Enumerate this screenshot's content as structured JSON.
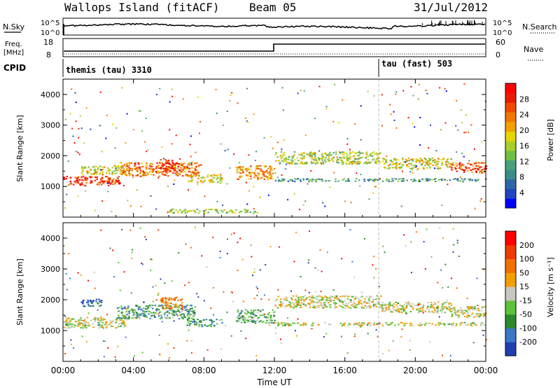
{
  "header": {
    "title": "Wallops Island (fitACF)",
    "beam": "Beam 05",
    "date": "31/Jul/2012"
  },
  "labels": {
    "nsky": "N.Sky",
    "nsearch": "N.Search",
    "freq_line1": "Freq.",
    "freq_line2": "[MHz]",
    "nave": "Nave",
    "cpid": "CPID",
    "exp_a": "themis (tau) 3310",
    "exp_b": "tau (fast) 503",
    "power_unit": "Power [dB]",
    "velocity_unit": "Velocity [m s⁻¹]",
    "y_axis": "Slant Range [km]",
    "x_axis": "Time UT"
  },
  "noise_axis": {
    "left_ticks": [
      "10^5",
      "10^0"
    ],
    "right_ticks": [
      "10^5",
      "10^0"
    ]
  },
  "freq_axis": {
    "left_ticks": [
      "18",
      "8"
    ],
    "right_ticks": [
      "60",
      "0"
    ]
  },
  "power_colorbar": {
    "ticks": [
      "28",
      "24",
      "20",
      "16",
      "12",
      "8",
      "4"
    ],
    "colors": [
      "#0000ff",
      "#1f45c0",
      "#2b67a8",
      "#3a8c8a",
      "#4aa27a",
      "#6fbf45",
      "#a8d02b",
      "#e6d400",
      "#f0a000",
      "#f27800",
      "#f04a00",
      "#e81d00",
      "#ff0000"
    ]
  },
  "velocity_colorbar": {
    "ticks": [
      "200",
      "100",
      "50",
      "15",
      "-15",
      "-50",
      "-100",
      "-200"
    ],
    "colors": [
      "#1f3fb0",
      "#3a78c8",
      "#2c8a2c",
      "#5cc23c",
      "#c8c8be",
      "#f2a000",
      "#f27000",
      "#ef3a00",
      "#ff0000"
    ]
  },
  "chart_data": [
    {
      "type": "heatmap",
      "name": "power",
      "xlabel": "Time UT",
      "ylabel": "Slant Range [km]",
      "xlim": [
        0,
        24
      ],
      "ylim": [
        0,
        4500
      ],
      "x_ticks": [
        "00:00",
        "04:00",
        "08:00",
        "12:00",
        "16:00",
        "20:00",
        "00:00"
      ],
      "y_ticks": [
        1000,
        2000,
        3000,
        4000
      ],
      "colorbar_label": "Power [dB]",
      "colorbar_ticks": [
        4,
        8,
        12,
        16,
        20,
        24,
        28
      ],
      "bands": [
        {
          "t0": 0.0,
          "t1": 3.2,
          "r0": 1050,
          "r1": 1350,
          "level": 0.85
        },
        {
          "t0": 1.0,
          "t1": 3.5,
          "r0": 1400,
          "r1": 1700,
          "level": 0.55
        },
        {
          "t0": 3.2,
          "t1": 7.8,
          "r0": 1350,
          "r1": 1800,
          "level": 0.75
        },
        {
          "t0": 5.5,
          "t1": 6.5,
          "r0": 1500,
          "r1": 1900,
          "level": 0.9
        },
        {
          "t0": 7.0,
          "t1": 9.0,
          "r0": 1150,
          "r1": 1400,
          "level": 0.6
        },
        {
          "t0": 9.8,
          "t1": 12.0,
          "r0": 1250,
          "r1": 1700,
          "level": 0.7
        },
        {
          "t0": 12.0,
          "t1": 18.0,
          "r0": 1750,
          "r1": 2150,
          "level": 0.5
        },
        {
          "t0": 12.0,
          "t1": 24.0,
          "r0": 1180,
          "r1": 1280,
          "level": 0.3
        },
        {
          "t0": 18.0,
          "t1": 22.0,
          "r0": 1600,
          "r1": 1950,
          "level": 0.55
        },
        {
          "t0": 22.0,
          "t1": 24.0,
          "r0": 1450,
          "r1": 1800,
          "level": 0.8
        },
        {
          "t0": 6.0,
          "t1": 11.0,
          "r0": 150,
          "r1": 280,
          "level": 0.5
        }
      ]
    },
    {
      "type": "heatmap",
      "name": "velocity",
      "xlabel": "Time UT",
      "ylabel": "Slant Range [km]",
      "xlim": [
        0,
        24
      ],
      "ylim": [
        0,
        4500
      ],
      "x_ticks": [
        "00:00",
        "04:00",
        "08:00",
        "12:00",
        "16:00",
        "20:00",
        "00:00"
      ],
      "y_ticks": [
        1000,
        2000,
        3000,
        4000
      ],
      "colorbar_label": "Velocity [m s-1]",
      "colorbar_ticks": [
        200,
        100,
        50,
        15,
        -15,
        -50,
        -100,
        -200
      ],
      "bands": [
        {
          "t0": 0.0,
          "t1": 3.5,
          "r0": 1100,
          "r1": 1450,
          "level": 0.5
        },
        {
          "t0": 1.0,
          "t1": 2.2,
          "r0": 1800,
          "r1": 2050,
          "level": 0.1
        },
        {
          "t0": 3.0,
          "t1": 7.5,
          "r0": 1400,
          "r1": 1850,
          "level": 0.3
        },
        {
          "t0": 5.5,
          "t1": 6.8,
          "r0": 1700,
          "r1": 2100,
          "level": 0.7
        },
        {
          "t0": 7.0,
          "t1": 9.0,
          "r0": 1150,
          "r1": 1400,
          "level": 0.3
        },
        {
          "t0": 9.8,
          "t1": 12.0,
          "r0": 1250,
          "r1": 1700,
          "level": 0.35
        },
        {
          "t0": 12.0,
          "t1": 18.0,
          "r0": 1750,
          "r1": 2150,
          "level": 0.5
        },
        {
          "t0": 12.0,
          "t1": 24.0,
          "r0": 1180,
          "r1": 1280,
          "level": 0.5
        },
        {
          "t0": 18.0,
          "t1": 22.0,
          "r0": 1600,
          "r1": 1950,
          "level": 0.5
        },
        {
          "t0": 22.0,
          "t1": 24.0,
          "r0": 1450,
          "r1": 1800,
          "level": 0.5
        }
      ]
    }
  ]
}
